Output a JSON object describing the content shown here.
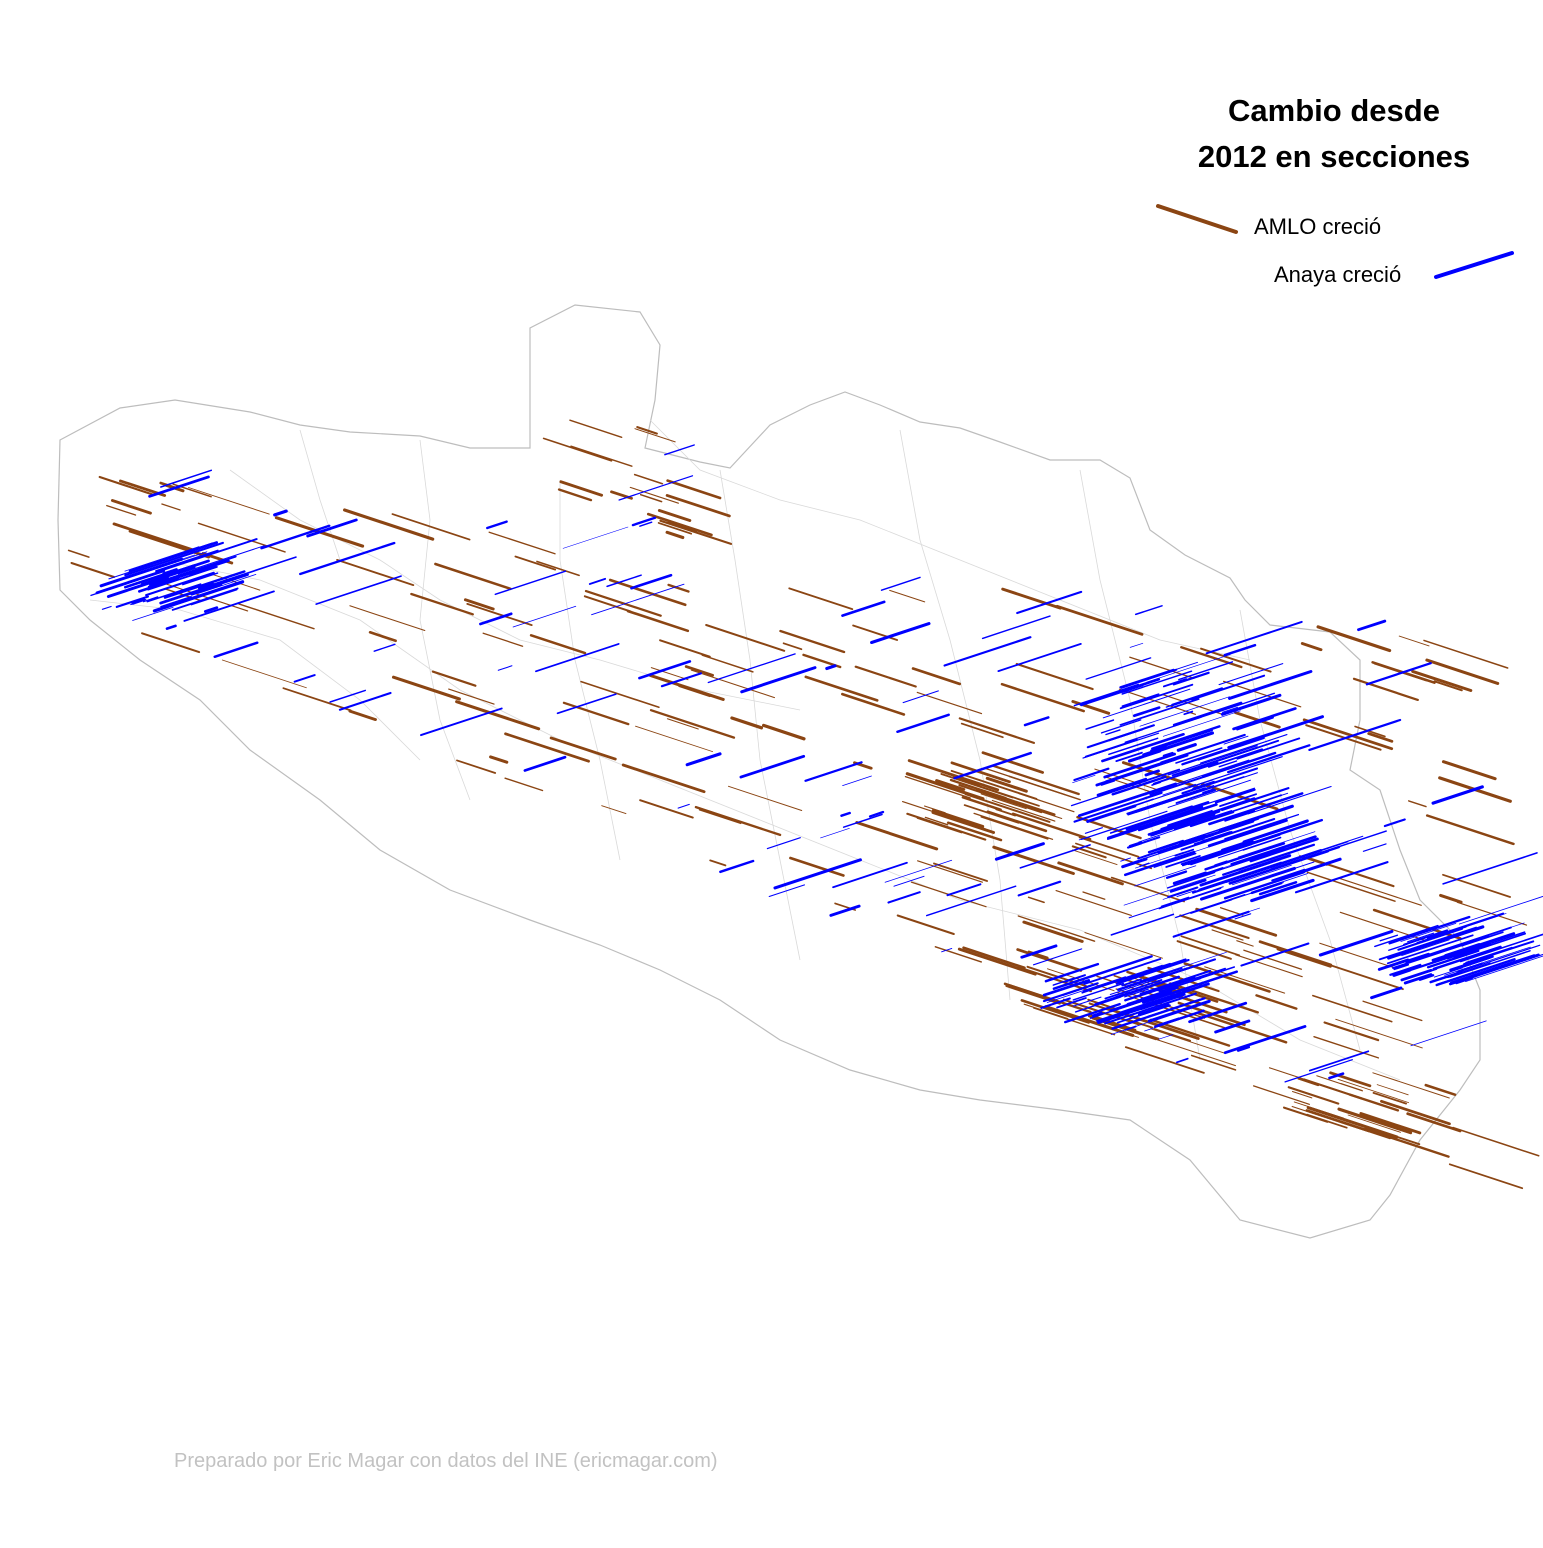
{
  "legend": {
    "title_line1": "Cambio desde",
    "title_line2": "2012 en secciones",
    "amlo_label": "AMLO creció",
    "anaya_label": "Anaya creció",
    "amlo_color": "#8B4513",
    "anaya_color": "#0000FF"
  },
  "credit": "Preparado por Eric Magar con datos del INE (ericmagar.com)",
  "map": {
    "boundary_color": "#bdbdbd",
    "background": "#ffffff"
  }
}
